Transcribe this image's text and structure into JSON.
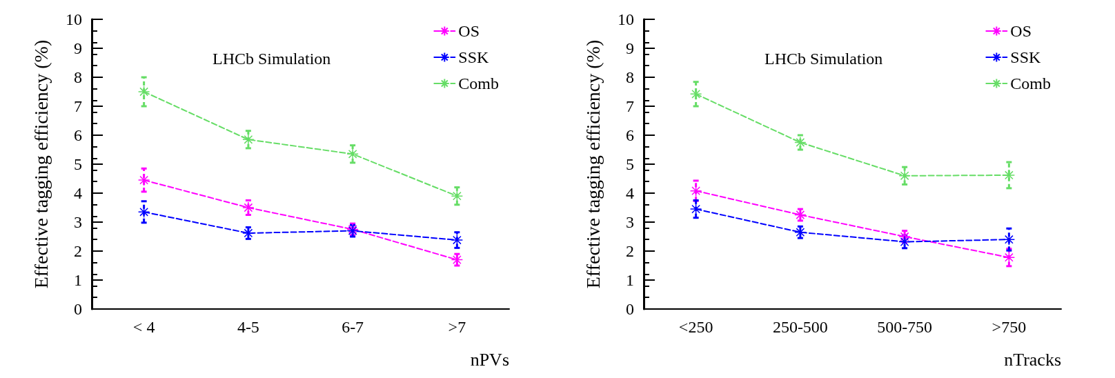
{
  "chart_data": [
    {
      "type": "line",
      "xlabel": "nPVs",
      "ylabel": "Effective tagging efficiency (%)",
      "annotations": [
        "LHCb Simulation"
      ],
      "categories": [
        "< 4",
        "4-5",
        "6-7",
        ">7"
      ],
      "ylim": [
        0,
        10
      ],
      "yticks": [
        0,
        1,
        2,
        3,
        4,
        5,
        6,
        7,
        8,
        9,
        10
      ],
      "grid": false,
      "legend": "top right",
      "marker": "cross",
      "line_style": "dashed",
      "series": [
        {
          "name": "OS",
          "color": "#ff00ff",
          "values": [
            4.45,
            3.5,
            2.75,
            1.7
          ],
          "errors": [
            0.4,
            0.25,
            0.2,
            0.2
          ]
        },
        {
          "name": "SSK",
          "color": "#0000ff",
          "values": [
            3.35,
            2.62,
            2.7,
            2.38
          ],
          "errors": [
            0.37,
            0.2,
            0.2,
            0.27
          ]
        },
        {
          "name": "Comb",
          "color": "#66dd66",
          "values": [
            7.5,
            5.85,
            5.35,
            3.9
          ],
          "errors": [
            0.5,
            0.3,
            0.3,
            0.3
          ]
        }
      ]
    },
    {
      "type": "line",
      "xlabel": "nTracks",
      "ylabel": "Effective tagging efficiency (%)",
      "annotations": [
        "LHCb Simulation"
      ],
      "categories": [
        "<250",
        "250-500",
        "500-750",
        ">750"
      ],
      "ylim": [
        0,
        10
      ],
      "yticks": [
        0,
        1,
        2,
        3,
        4,
        5,
        6,
        7,
        8,
        9,
        10
      ],
      "grid": false,
      "legend": "top right",
      "marker": "cross",
      "line_style": "dashed",
      "series": [
        {
          "name": "OS",
          "color": "#ff00ff",
          "values": [
            4.08,
            3.25,
            2.5,
            1.78
          ],
          "errors": [
            0.35,
            0.2,
            0.2,
            0.3
          ]
        },
        {
          "name": "SSK",
          "color": "#0000ff",
          "values": [
            3.45,
            2.65,
            2.32,
            2.4
          ],
          "errors": [
            0.3,
            0.2,
            0.22,
            0.38
          ]
        },
        {
          "name": "Comb",
          "color": "#66dd66",
          "values": [
            7.42,
            5.75,
            4.6,
            4.62
          ],
          "errors": [
            0.42,
            0.25,
            0.3,
            0.45
          ]
        }
      ]
    }
  ]
}
